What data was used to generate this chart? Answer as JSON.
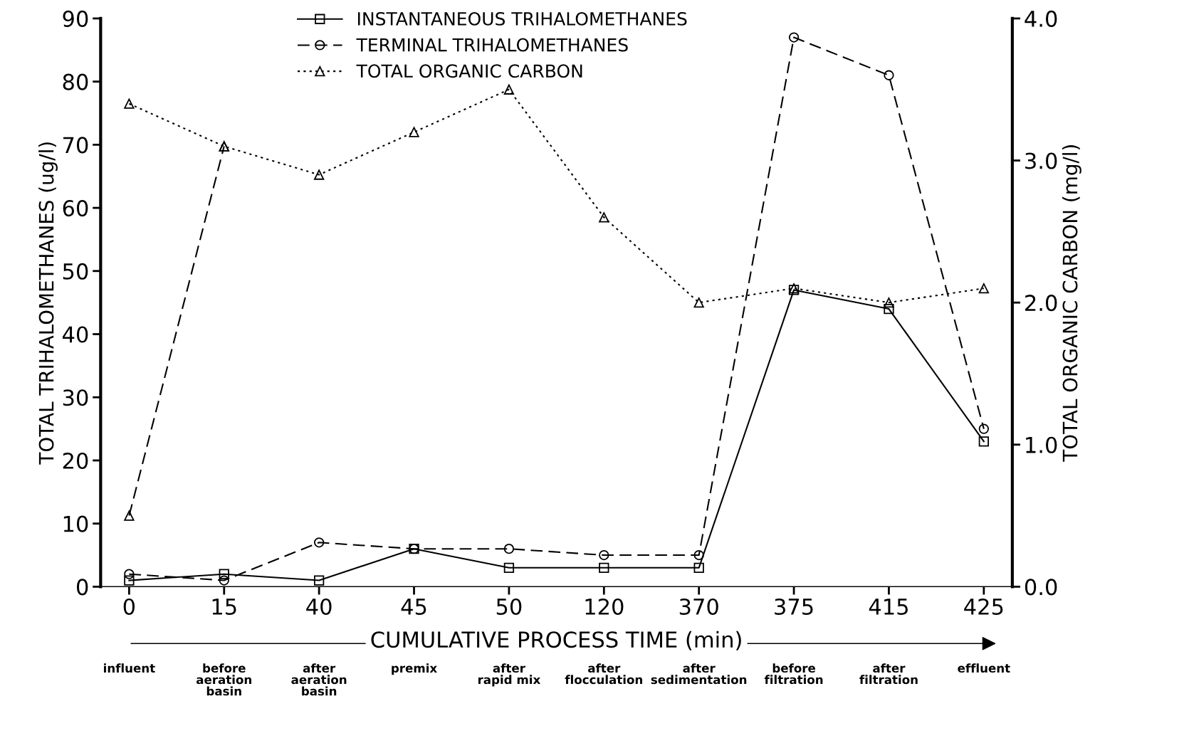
{
  "chart_data": {
    "type": "line",
    "categories": [
      "0",
      "15",
      "40",
      "45",
      "50",
      "120",
      "370",
      "375",
      "415",
      "425"
    ],
    "xlabel": "CUMULATIVE PROCESS TIME (min)",
    "ylabel": "TOTAL TRIHALOMETHANES (ug/l)",
    "y2label": "TOTAL ORGANIC CARBON (mg/l)",
    "series": [
      {
        "name": "INSTANTANEOUS TRIHALOMETHANES",
        "color": "#000000",
        "marker": "square",
        "line_style": "solid",
        "values": [
          1,
          2,
          1,
          6,
          3,
          3,
          3,
          47,
          44,
          23
        ]
      },
      {
        "name": "TERMINAL TRIHALOMETHANES",
        "color": "#000000",
        "marker": "circle",
        "line_style": "dashed",
        "values": [
          2,
          1,
          7,
          6,
          6,
          5,
          5,
          87,
          81,
          25
        ]
      },
      {
        "name": "TOTAL ORGANIC CARBON",
        "color": "#000000",
        "marker": "triangle",
        "line_style": "dotted",
        "axis": "y2",
        "values": [
          3.4,
          3.1,
          2.9,
          3.2,
          3.5,
          2.6,
          2.0,
          2.1,
          2.0,
          2.1
        ]
      },
      {
        "color": "#000000",
        "marker": "triangle",
        "line_style": "dashed",
        "axis": "y2",
        "values": [
          0.5,
          3.1,
          null,
          null,
          null,
          null,
          null,
          null,
          null,
          null
        ]
      }
    ],
    "ylim": [
      0,
      90
    ],
    "yticks": [
      0,
      10,
      20,
      30,
      40,
      50,
      60,
      70,
      80,
      90
    ],
    "y2lim": [
      0,
      4.0
    ],
    "y2ticks": [
      {
        "value": 0,
        "label": "0.0"
      },
      {
        "value": 1,
        "label": "1.0"
      },
      {
        "value": 2,
        "label": "2.0"
      },
      {
        "value": 3,
        "label": "3.0"
      },
      {
        "value": 4,
        "label": "4.0"
      }
    ],
    "annotations": [
      "influent",
      "before\naeration\nbasin",
      "after\naeration\nbasin",
      "premix",
      "after\nrapid mix",
      "after\nflocculation",
      "after\nsedimentation",
      "before\nfiltration",
      "after\nfiltration",
      "effluent"
    ],
    "grid": false,
    "legend": "top"
  }
}
